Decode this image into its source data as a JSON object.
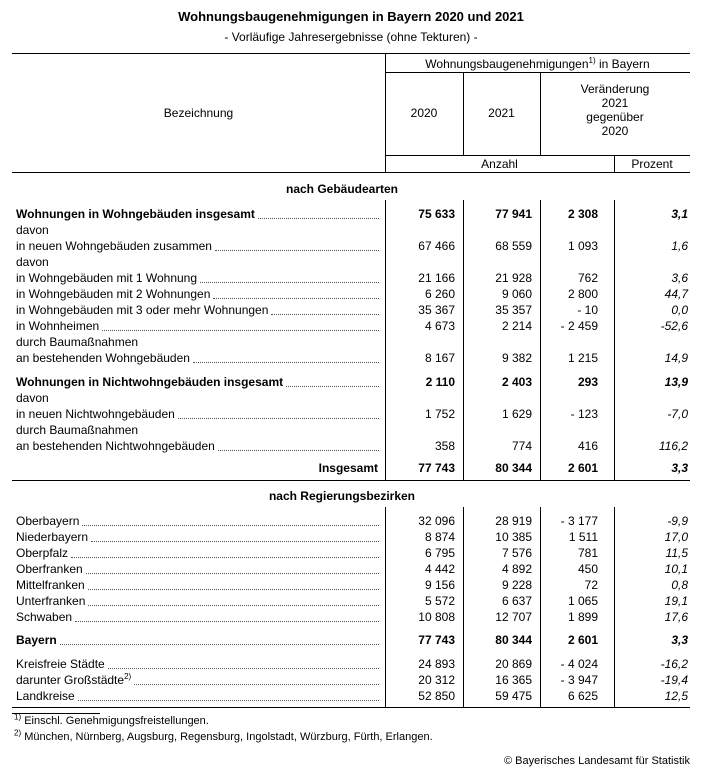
{
  "header": {
    "title": "Wohnungsbaugenehmigungen in Bayern 2020 und 2021",
    "subtitle": "- Vorläufige Jahresergebnisse (ohne Tekturen) -"
  },
  "table": {
    "label_header": "Bezeichnung",
    "group_header": {
      "text": "Wohnungsbaugenehmigungen",
      "note": "1)",
      "suffix": "in Bayern"
    },
    "columns": [
      "2020",
      "2021"
    ],
    "change_header": [
      "Veränderung",
      "2021",
      "gegenüber",
      "2020"
    ],
    "units": [
      "Anzahl",
      "Prozent"
    ],
    "sections": [
      {
        "heading": "nach Gebäudearten",
        "rows": [
          {
            "label": "Wohnungen in Wohngebäuden insgesamt",
            "values": [
              "75 633",
              "77 941",
              "2 308",
              "3,1"
            ]
          },
          {
            "label": "davon"
          },
          {
            "label": "in neuen Wohngebäuden zusammen",
            "values": [
              "67 466",
              "68 559",
              "1 093",
              "1,6"
            ]
          },
          {
            "label": "davon"
          },
          {
            "label": "in Wohngebäuden mit 1 Wohnung",
            "values": [
              "21 166",
              "21 928",
              "762",
              "3,6"
            ]
          },
          {
            "label": "in Wohngebäuden mit 2 Wohnungen",
            "values": [
              "6 260",
              "9 060",
              "2 800",
              "44,7"
            ]
          },
          {
            "label": "in Wohngebäuden mit 3 oder mehr Wohnungen",
            "values": [
              "35 367",
              "35 357",
              "- 10",
              "0,0"
            ]
          },
          {
            "label": "in Wohnheimen",
            "values": [
              "4 673",
              "2 214",
              "- 2 459",
              "-52,6"
            ]
          },
          {
            "label": "durch Baumaßnahmen"
          },
          {
            "label": "an bestehenden Wohngebäuden",
            "values": [
              "8 167",
              "9 382",
              "1 215",
              "14,9"
            ]
          },
          {
            "label": "Wohnungen in Nichtwohngebäuden insgesamt",
            "values": [
              "2 110",
              "2 403",
              "293",
              "13,9"
            ]
          },
          {
            "label": "davon"
          },
          {
            "label": "in neuen Nichtwohngebäuden",
            "values": [
              "1 752",
              "1 629",
              "- 123",
              "-7,0"
            ]
          },
          {
            "label": "durch Baumaßnahmen"
          },
          {
            "label": "an bestehenden Nichtwohngebäuden",
            "values": [
              "358",
              "774",
              "416",
              "116,2"
            ]
          },
          {
            "label": "Insgesamt",
            "values": [
              "77 743",
              "80 344",
              "2 601",
              "3,3"
            ]
          }
        ]
      },
      {
        "heading": "nach Regierungsbezirken",
        "rows": [
          {
            "label": "Oberbayern",
            "values": [
              "32 096",
              "28 919",
              "- 3 177",
              "-9,9"
            ]
          },
          {
            "label": "Niederbayern",
            "values": [
              "8 874",
              "10 385",
              "1 511",
              "17,0"
            ]
          },
          {
            "label": "Oberpfalz",
            "values": [
              "6 795",
              "7 576",
              "781",
              "11,5"
            ]
          },
          {
            "label": "Oberfranken",
            "values": [
              "4 442",
              "4 892",
              "450",
              "10,1"
            ]
          },
          {
            "label": "Mittelfranken",
            "values": [
              "9 156",
              "9 228",
              "72",
              "0,8"
            ]
          },
          {
            "label": "Unterfranken",
            "values": [
              "5 572",
              "6 637",
              "1 065",
              "19,1"
            ]
          },
          {
            "label": "Schwaben",
            "values": [
              "10 808",
              "12 707",
              "1 899",
              "17,6"
            ]
          },
          {
            "label": "Bayern",
            "values": [
              "77 743",
              "80 344",
              "2 601",
              "3,3"
            ]
          },
          {
            "label": "Kreisfreie Städte",
            "values": [
              "24 893",
              "20 869",
              "- 4 024",
              "-16,2"
            ]
          },
          {
            "label": "darunter Großstädte",
            "note": "2)",
            "values": [
              "20 312",
              "16 365",
              "- 3 947",
              "-19,4"
            ]
          },
          {
            "label": "Landkreise",
            "values": [
              "52 850",
              "59 475",
              "6 625",
              "12,5"
            ]
          }
        ]
      }
    ]
  },
  "footnotes": [
    {
      "mark": "1)",
      "text": "Einschl. Genehmigungsfreistellungen."
    },
    {
      "mark": "2)",
      "text": "München, Nürnberg, Augsburg, Regensburg, Ingolstadt, Würzburg, Fürth, Erlangen."
    }
  ],
  "source": "© Bayerisches Landesamt für Statistik"
}
